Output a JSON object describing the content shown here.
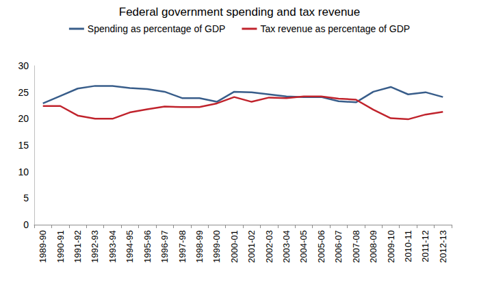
{
  "chart_data": {
    "type": "line",
    "title": "Federal government spending and tax revenue",
    "categories": [
      "1989-90",
      "1990-91",
      "1991-92",
      "1992-93",
      "1993-94",
      "1994-95",
      "1995-96",
      "1996-97",
      "1997-98",
      "1998-99",
      "1999-00",
      "2000-01",
      "2001-02",
      "2002-03",
      "2003-04",
      "2004-05",
      "2005-06",
      "2006-07",
      "2007-08",
      "2008-09",
      "2009-10",
      "2010-11",
      "2011-12",
      "2012-13"
    ],
    "series": [
      {
        "name": "Spending as percentage of GDP",
        "color": "#385d8a",
        "values": [
          22.9,
          24.3,
          25.7,
          26.2,
          26.2,
          25.8,
          25.6,
          25.1,
          23.9,
          23.9,
          23.2,
          25.1,
          25.0,
          24.6,
          24.2,
          24.1,
          24.1,
          23.3,
          23.1,
          25.1,
          26.0,
          24.6,
          25.0,
          24.1
        ]
      },
      {
        "name": "Tax revenue as percentage of GDP",
        "color": "#c0232c",
        "values": [
          22.4,
          22.4,
          20.6,
          20.0,
          20.0,
          21.2,
          21.8,
          22.3,
          22.2,
          22.2,
          22.9,
          24.1,
          23.2,
          24.0,
          23.9,
          24.2,
          24.2,
          23.8,
          23.6,
          21.7,
          20.1,
          19.9,
          20.8,
          21.3
        ]
      }
    ],
    "ylim": [
      0,
      30
    ],
    "yticks": [
      0,
      5,
      10,
      15,
      20,
      25,
      30
    ],
    "grid": false,
    "legend": "top"
  }
}
